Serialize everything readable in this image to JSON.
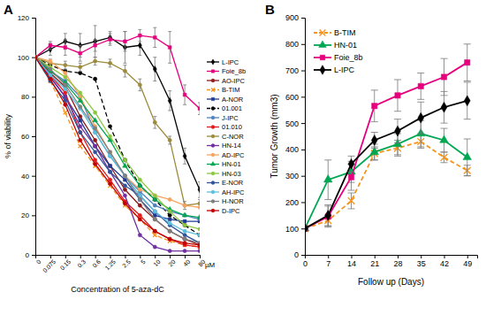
{
  "chart_data": [
    {
      "type": "line",
      "title": "A",
      "x_label": "Concentration of 5-aza-dC",
      "y_label": "% of viability",
      "categories": [
        "0",
        "0.075",
        "0.15",
        "0.3",
        "0.6",
        "1.25",
        "2.5",
        "5",
        "10",
        "20",
        "40",
        "80"
      ],
      "annotations": [
        "µM"
      ],
      "ylim": [
        0,
        120
      ],
      "yticks": [
        0,
        20,
        40,
        60,
        80,
        100,
        120
      ],
      "legend": "right",
      "series": [
        {
          "name": "L-IPC",
          "color": "#000000",
          "marker": "diamond",
          "values": [
            100,
            104,
            108,
            106,
            108,
            110,
            105,
            106,
            94,
            78,
            50,
            33
          ],
          "errors": [
            0,
            3,
            4,
            6,
            8,
            3,
            8,
            5,
            6,
            5,
            4,
            4
          ]
        },
        {
          "name": "Foie_8b",
          "color": "#e6007e",
          "marker": "square",
          "values": [
            100,
            106,
            105,
            102,
            106,
            109,
            108,
            111,
            110,
            105,
            81,
            74
          ],
          "errors": [
            0,
            2,
            4,
            4,
            3,
            3,
            5,
            3,
            5,
            8,
            5,
            3
          ]
        },
        {
          "name": "AO-IPC",
          "color": "#8b1a1a",
          "marker": "circle",
          "values": [
            100,
            92,
            85,
            70,
            58,
            45,
            33,
            25,
            18,
            12,
            8,
            5
          ]
        },
        {
          "name": "B-TIM",
          "color": "#f7941d",
          "marker": "x",
          "line_style": "dashed",
          "values": [
            100,
            88,
            72,
            55,
            45,
            35,
            25,
            18,
            10,
            7,
            5,
            4
          ]
        },
        {
          "name": "A-NOR",
          "color": "#1f3a93",
          "marker": "square",
          "values": [
            100,
            90,
            80,
            68,
            55,
            45,
            38,
            28,
            20,
            18,
            17,
            17
          ]
        },
        {
          "name": "01.001",
          "color": "#000000",
          "marker": "circle",
          "line_style": "dashed",
          "values": [
            100,
            96,
            93,
            92,
            89,
            65,
            48,
            35,
            28,
            20,
            15,
            10
          ]
        },
        {
          "name": "J-IPC",
          "color": "#4f81bd",
          "marker": "circle",
          "values": [
            100,
            93,
            88,
            80,
            62,
            50,
            40,
            32,
            25,
            22,
            20,
            18
          ]
        },
        {
          "name": "01.010",
          "color": "#e41a1c",
          "marker": "circle",
          "values": [
            100,
            91,
            82,
            62,
            48,
            38,
            27,
            20,
            12,
            8,
            5,
            4
          ]
        },
        {
          "name": "C-NOR",
          "color": "#9c8b3c",
          "marker": "circle",
          "values": [
            100,
            97,
            96,
            95,
            98,
            97,
            93,
            86,
            67,
            58,
            25,
            26
          ],
          "errors": [
            0,
            2,
            2,
            2,
            2,
            2,
            3,
            3,
            3,
            2,
            2,
            2
          ]
        },
        {
          "name": "HN-14",
          "color": "#7030a0",
          "marker": "circle",
          "values": [
            100,
            90,
            80,
            65,
            55,
            42,
            30,
            10,
            4,
            2,
            2,
            2
          ]
        },
        {
          "name": "AD-IPC",
          "color": "#f4a460",
          "marker": "circle",
          "values": [
            100,
            98,
            92,
            80,
            65,
            52,
            40,
            33,
            30,
            28,
            25,
            24
          ]
        },
        {
          "name": "HN-01",
          "color": "#00a651",
          "marker": "triangle",
          "values": [
            100,
            93,
            87,
            78,
            68,
            58,
            45,
            35,
            28,
            23,
            20,
            19
          ]
        },
        {
          "name": "HN-03",
          "color": "#8dc63f",
          "marker": "circle",
          "values": [
            100,
            95,
            90,
            82,
            72,
            60,
            48,
            38,
            30,
            22,
            15,
            13
          ]
        },
        {
          "name": "E-NOR",
          "color": "#2e5597",
          "marker": "circle",
          "values": [
            100,
            88,
            78,
            62,
            52,
            42,
            35,
            30,
            22,
            15,
            10,
            6
          ]
        },
        {
          "name": "AH-IPC",
          "color": "#5bc0de",
          "marker": "circle",
          "values": [
            100,
            91,
            84,
            74,
            62,
            50,
            40,
            30,
            22,
            16,
            12,
            10
          ]
        },
        {
          "name": "H-NOR",
          "color": "#7f7f7f",
          "marker": "circle",
          "values": [
            100,
            94,
            86,
            75,
            64,
            52,
            40,
            28,
            18,
            12,
            8,
            6
          ]
        },
        {
          "name": "D-IPC",
          "color": "#c00000",
          "marker": "circle",
          "values": [
            100,
            89,
            76,
            58,
            46,
            36,
            26,
            18,
            12,
            8,
            6,
            5
          ]
        }
      ]
    },
    {
      "type": "line",
      "title": "B",
      "x_label": "Follow up (Days)",
      "y_label": "Tumor Growth (mm3)",
      "x": [
        0,
        7,
        14,
        21,
        28,
        35,
        42,
        49
      ],
      "xlim": [
        0,
        52
      ],
      "xticks": [
        0,
        7,
        14,
        21,
        28,
        35,
        42,
        49
      ],
      "ylim": [
        0,
        900
      ],
      "yticks": [
        0,
        100,
        200,
        300,
        400,
        500,
        600,
        700,
        800,
        900
      ],
      "legend": "top-left",
      "series": [
        {
          "name": "B-TIM",
          "color": "#f7941d",
          "marker": "x",
          "line_style": "dashed",
          "values": [
            100,
            130,
            205,
            385,
            405,
            430,
            370,
            320
          ],
          "errors": [
            0,
            20,
            30,
            25,
            30,
            25,
            20,
            20
          ]
        },
        {
          "name": "HN-01",
          "color": "#00a651",
          "marker": "triangle",
          "values": [
            100,
            285,
            315,
            390,
            420,
            460,
            435,
            370
          ],
          "errors": [
            0,
            75,
            40,
            30,
            40,
            50,
            45,
            70
          ]
        },
        {
          "name": "Foie_8b",
          "color": "#e6007e",
          "marker": "square",
          "values": [
            100,
            145,
            295,
            565,
            605,
            640,
            675,
            730
          ],
          "errors": [
            0,
            40,
            50,
            60,
            60,
            50,
            70,
            70
          ]
        },
        {
          "name": "L-IPC",
          "color": "#000000",
          "marker": "diamond",
          "values": [
            100,
            150,
            345,
            435,
            470,
            520,
            560,
            585
          ],
          "errors": [
            0,
            40,
            30,
            30,
            45,
            60,
            60,
            70
          ]
        }
      ]
    }
  ]
}
